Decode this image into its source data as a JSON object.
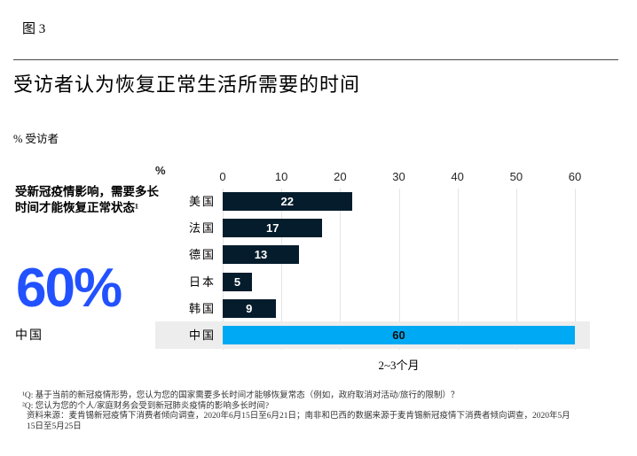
{
  "header": {
    "figure_label": "图 3",
    "title": "受访者认为恢复正常生活所需要的时间",
    "unit_label": "% 受访者"
  },
  "left_panel": {
    "question": "受新冠疫情影响，需要多长时间才能恢复正常状态¹",
    "big_stat": "60%",
    "big_stat_label": "中国"
  },
  "chart_data": {
    "type": "bar",
    "orientation": "horizontal",
    "title": "受访者认为恢复正常生活所需要的时间",
    "axis_unit": "%",
    "categories": [
      "美国",
      "法国",
      "德国",
      "日本",
      "韩国",
      "中国"
    ],
    "values": [
      22,
      17,
      13,
      5,
      9,
      60
    ],
    "highlight_index": 5,
    "xlim": [
      0,
      60
    ],
    "ticks": [
      0,
      10,
      20,
      30,
      40,
      50,
      60
    ],
    "grid": true,
    "legend": false,
    "annotation": "2~3个月",
    "xlabel": "%",
    "ylabel": ""
  },
  "colors": {
    "bar": "#051C2C",
    "highlight_bar": "#00A9F4",
    "highlight_row_bg": "#EDEDED",
    "accent_blue": "#2251FF",
    "grid": "#E4E4E4",
    "value_label": "#FFFFFF",
    "highlight_value_label": "#0D0D0D"
  },
  "footnotes": {
    "lines": [
      "¹Q: 基于当前的新冠疫情形势，您认为您的国家需要多长时间才能够恢复常态（例如，政府取消对活动/旅行的限制）？",
      "²Q: 您认为您的个人/家庭财务会受到新冠肺炎疫情的影响多长时间?",
      "资料来源：麦肯锡新冠疫情下消费者倾向调查，2020年6月15日至6月21日；南非和巴西的数据来源于麦肯锡新冠疫情下消费者倾向调查，2020年5月15日至5月25日"
    ]
  }
}
